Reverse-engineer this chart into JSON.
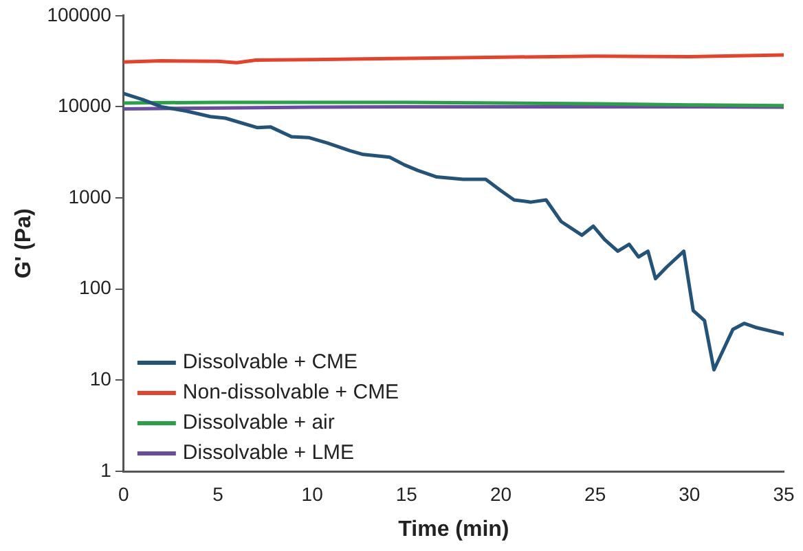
{
  "chart_data": {
    "type": "line",
    "xlabel": "Time (min)",
    "ylabel": "G' (Pa)",
    "xlim": [
      0,
      35
    ],
    "xticks": [
      0,
      5,
      10,
      15,
      20,
      25,
      30,
      35
    ],
    "ylim": [
      1,
      100000
    ],
    "yticks": [
      1,
      10,
      100,
      1000,
      10000,
      100000
    ],
    "log": "y",
    "grid": false,
    "legend": "bottom left",
    "marker": "none",
    "line_style": "solid",
    "series": [
      {
        "name": "Dissolvable + CME",
        "color": "#245379",
        "x": [
          0,
          1,
          2,
          3.3,
          4.6,
          5.4,
          7.1,
          7.8,
          8.9,
          9.8,
          10.8,
          12,
          12.7,
          13.4,
          14.1,
          14.9,
          15.6,
          16.6,
          18,
          19.2,
          20,
          20.7,
          21.6,
          22.4,
          23.2,
          24.3,
          24.9,
          25.5,
          26.2,
          26.8,
          27.3,
          27.8,
          28.2,
          28.8,
          29.7,
          30.2,
          30.8,
          31.3,
          32.3,
          32.9,
          33.5,
          35
        ],
        "values": [
          14000,
          12000,
          10000,
          9000,
          7800,
          7500,
          5900,
          6000,
          4700,
          4600,
          4000,
          3300,
          3000,
          2900,
          2800,
          2300,
          2000,
          1700,
          1600,
          1600,
          1200,
          950,
          900,
          950,
          550,
          390,
          490,
          350,
          260,
          310,
          225,
          260,
          130,
          175,
          260,
          58,
          45,
          13,
          36,
          42,
          38,
          32
        ]
      },
      {
        "name": "Non-dissolvable + CME",
        "color": "#e8412a",
        "x": [
          0,
          2,
          5,
          6,
          7,
          10,
          15,
          20,
          25,
          30,
          35
        ],
        "values": [
          31000,
          32000,
          31500,
          30500,
          32500,
          33000,
          34000,
          35000,
          36000,
          35500,
          37000
        ]
      },
      {
        "name": "Dissolvable + air",
        "color": "#2ca048",
        "x": [
          0,
          5,
          10,
          15,
          20,
          25,
          30,
          35
        ],
        "values": [
          11000,
          11200,
          11200,
          11200,
          11000,
          10800,
          10500,
          10300
        ]
      },
      {
        "name": "Dissolvable + LME",
        "color": "#6a4ca0",
        "x": [
          0,
          5,
          10,
          15,
          20,
          25,
          30,
          35
        ],
        "values": [
          9500,
          9700,
          9900,
          10000,
          10000,
          10000,
          10000,
          9900
        ]
      }
    ]
  }
}
